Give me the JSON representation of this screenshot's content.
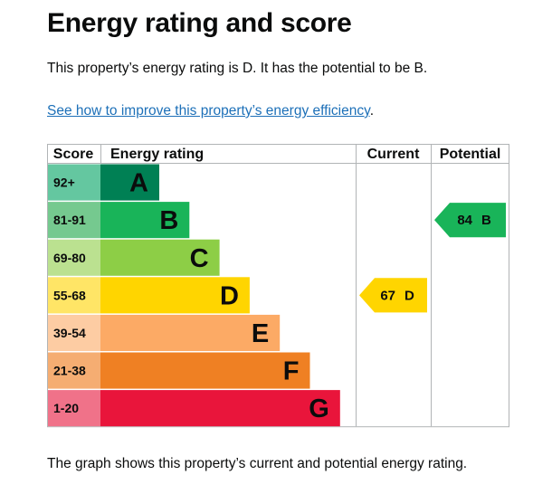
{
  "page": {
    "title": "Energy rating and score",
    "summary": "This property’s energy rating is D. It has the potential to be B.",
    "link_text": "See how to improve this property’s energy efficiency",
    "link_suffix": ".",
    "footer": "The graph shows this property’s current and potential energy rating."
  },
  "chart_data": {
    "type": "bar",
    "headers": {
      "score": "Score",
      "rating": "Energy rating",
      "current": "Current",
      "potential": "Potential"
    },
    "bands": [
      {
        "band": "A",
        "range": "92+",
        "bar_color": "#008054",
        "score_bg": "#64c7a0",
        "dark_text": false
      },
      {
        "band": "B",
        "range": "81-91",
        "bar_color": "#19b459",
        "score_bg": "#75c98f",
        "dark_text": false
      },
      {
        "band": "C",
        "range": "69-80",
        "bar_color": "#8dce46",
        "score_bg": "#bbe190",
        "dark_text": false
      },
      {
        "band": "D",
        "range": "55-68",
        "bar_color": "#ffd500",
        "score_bg": "#ffe566",
        "dark_text": true
      },
      {
        "band": "E",
        "range": "39-54",
        "bar_color": "#fcaa65",
        "score_bg": "#fdccA3",
        "dark_text": true
      },
      {
        "band": "F",
        "range": "21-38",
        "bar_color": "#ef8023",
        "score_bg": "#f5ad72",
        "dark_text": true
      },
      {
        "band": "G",
        "range": "1-20",
        "bar_color": "#e9153b",
        "score_bg": "#f07289",
        "dark_text": true
      }
    ],
    "current": {
      "score": 67,
      "band": "D",
      "color": "#ffd500"
    },
    "potential": {
      "score": 84,
      "band": "B",
      "color": "#19b459"
    }
  }
}
